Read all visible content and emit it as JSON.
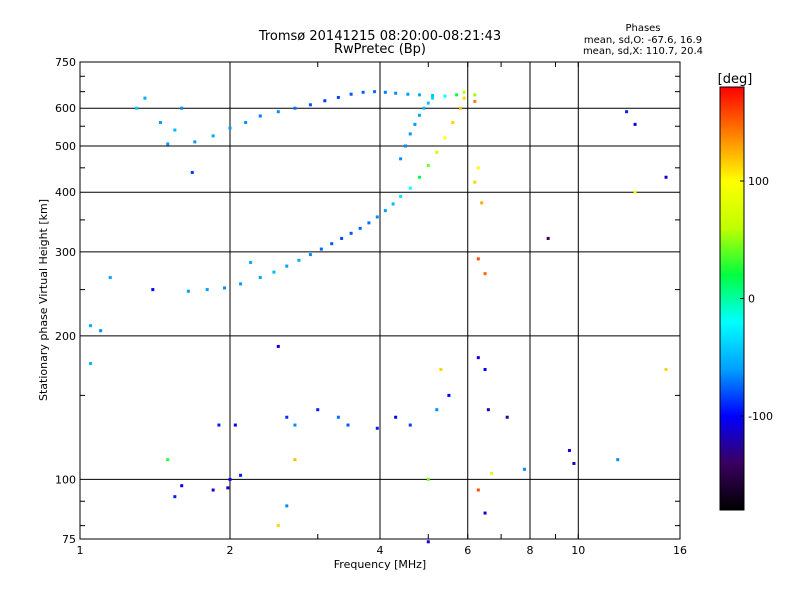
{
  "chart_data": {
    "type": "scatter",
    "title": "Tromsø 20141215 08:20:00-08:21:43",
    "subtitle": "RwPretec (Bp)",
    "xlabel": "Frequency [MHz]",
    "ylabel": "Stationary phase Virtual Height [km]",
    "x_scale": "log",
    "y_scale": "log",
    "xlim": [
      1,
      16
    ],
    "ylim": [
      75,
      750
    ],
    "x_ticks": [
      1,
      2,
      4,
      6,
      8,
      10,
      16
    ],
    "y_ticks": [
      75,
      100,
      200,
      300,
      400,
      500,
      600,
      750
    ],
    "x_tick_labels": [
      "1",
      "2",
      "4",
      "6",
      "8",
      "10",
      "16"
    ],
    "y_tick_labels": [
      "75",
      "100",
      "200",
      "300",
      "400",
      "500",
      "600",
      "750"
    ],
    "grid": true,
    "phase_box": {
      "title": "Phases",
      "line_o": "mean, sd,O: -67.6, 16.9",
      "line_x": "mean, sd,X: 110.7, 20.4"
    },
    "colorbar": {
      "label": "[deg]",
      "range": [
        -180,
        180
      ],
      "ticks": [
        100,
        0,
        -100
      ],
      "tick_labels": [
        "100",
        "0",
        "-100"
      ],
      "colors": [
        "#000000",
        "#3a0060",
        "#0000ff",
        "#00a0ff",
        "#00ffff",
        "#00ff40",
        "#c0ff00",
        "#ffff00",
        "#ff8000",
        "#ff0000"
      ]
    },
    "series": [
      {
        "trace": "lower-F-trace",
        "points": [
          [
            1.65,
            248,
            -55
          ],
          [
            1.8,
            250,
            -55
          ],
          [
            1.95,
            252,
            -60
          ],
          [
            2.1,
            257,
            -55
          ],
          [
            2.3,
            265,
            -50
          ],
          [
            2.45,
            272,
            -45
          ],
          [
            2.6,
            280,
            -55
          ],
          [
            2.75,
            288,
            -50
          ],
          [
            2.9,
            296,
            -60
          ],
          [
            3.05,
            304,
            -75
          ],
          [
            3.2,
            312,
            -80
          ],
          [
            3.35,
            320,
            -85
          ],
          [
            3.5,
            328,
            -80
          ],
          [
            3.65,
            336,
            -75
          ],
          [
            3.8,
            345,
            -70
          ],
          [
            3.95,
            355,
            -60
          ],
          [
            4.1,
            366,
            -55
          ],
          [
            4.25,
            378,
            -45
          ],
          [
            4.4,
            392,
            -30
          ],
          [
            4.6,
            408,
            -20
          ],
          [
            4.8,
            430,
            10
          ],
          [
            5.0,
            455,
            40
          ],
          [
            5.2,
            485,
            70
          ],
          [
            5.4,
            520,
            100
          ],
          [
            5.6,
            560,
            110
          ],
          [
            5.8,
            600,
            115
          ],
          [
            5.9,
            630,
            110
          ]
        ]
      },
      {
        "trace": "upper-F-trace",
        "points": [
          [
            1.5,
            505,
            -55
          ],
          [
            1.7,
            510,
            -55
          ],
          [
            1.85,
            525,
            -50
          ],
          [
            2.0,
            545,
            -55
          ],
          [
            2.15,
            560,
            -60
          ],
          [
            2.3,
            578,
            -65
          ],
          [
            2.5,
            590,
            -60
          ],
          [
            2.7,
            600,
            -70
          ],
          [
            2.9,
            610,
            -80
          ],
          [
            3.1,
            622,
            -90
          ],
          [
            3.3,
            632,
            -85
          ],
          [
            3.5,
            642,
            -80
          ],
          [
            3.7,
            648,
            -75
          ],
          [
            3.9,
            650,
            -70
          ],
          [
            4.1,
            648,
            -65
          ],
          [
            4.3,
            645,
            -60
          ],
          [
            4.55,
            642,
            -55
          ],
          [
            4.8,
            640,
            -50
          ],
          [
            5.1,
            638,
            -40
          ],
          [
            5.4,
            636,
            -20
          ],
          [
            5.7,
            640,
            10
          ],
          [
            5.9,
            648,
            60
          ]
        ]
      },
      {
        "trace": "mid-branch",
        "points": [
          [
            4.4,
            470,
            -60
          ],
          [
            4.5,
            500,
            -62
          ],
          [
            4.6,
            530,
            -58
          ],
          [
            4.7,
            555,
            -55
          ],
          [
            4.8,
            580,
            -50
          ],
          [
            4.9,
            600,
            -45
          ],
          [
            5.0,
            615,
            -40
          ],
          [
            5.1,
            630,
            -35
          ]
        ]
      },
      {
        "trace": "scattered-echoes",
        "points": [
          [
            1.35,
            630,
            -50
          ],
          [
            1.3,
            600,
            -40
          ],
          [
            1.45,
            560,
            -55
          ],
          [
            1.55,
            540,
            -45
          ],
          [
            1.68,
            440,
            -90
          ],
          [
            1.6,
            600,
            -60
          ],
          [
            1.05,
            210,
            -50
          ],
          [
            1.05,
            175,
            -45
          ],
          [
            1.1,
            205,
            -60
          ],
          [
            1.15,
            265,
            -50
          ],
          [
            1.4,
            250,
            -110
          ],
          [
            2.5,
            190,
            -120
          ],
          [
            2.2,
            285,
            -50
          ],
          [
            1.9,
            130,
            -100
          ],
          [
            2.05,
            130,
            -110
          ],
          [
            2.6,
            135,
            -95
          ],
          [
            2.7,
            130,
            -60
          ],
          [
            3.0,
            140,
            -100
          ],
          [
            3.3,
            135,
            -70
          ],
          [
            3.45,
            130,
            -80
          ],
          [
            3.95,
            128,
            -100
          ],
          [
            4.3,
            135,
            -110
          ],
          [
            4.6,
            130,
            -90
          ],
          [
            5.2,
            140,
            -60
          ],
          [
            5.5,
            150,
            -110
          ],
          [
            5.3,
            170,
            110
          ],
          [
            6.3,
            180,
            -120
          ],
          [
            6.5,
            170,
            -110
          ],
          [
            6.6,
            140,
            -130
          ],
          [
            7.2,
            135,
            -140
          ],
          [
            6.3,
            95,
            150
          ],
          [
            6.5,
            85,
            -120
          ],
          [
            7.8,
            105,
            -60
          ],
          [
            9.6,
            115,
            -120
          ],
          [
            9.8,
            108,
            -130
          ],
          [
            8.7,
            320,
            -150
          ],
          [
            6.5,
            270,
            140
          ],
          [
            6.3,
            290,
            150
          ],
          [
            6.4,
            380,
            120
          ],
          [
            6.2,
            420,
            110
          ],
          [
            6.3,
            450,
            100
          ],
          [
            6.2,
            620,
            130
          ],
          [
            1.55,
            92,
            -100
          ],
          [
            1.6,
            97,
            -110
          ],
          [
            1.85,
            95,
            -120
          ],
          [
            2.0,
            100,
            -115
          ],
          [
            2.1,
            102,
            -100
          ],
          [
            1.98,
            96,
            -125
          ],
          [
            2.5,
            80,
            110
          ],
          [
            2.6,
            88,
            -60
          ],
          [
            1.5,
            110,
            20
          ],
          [
            2.7,
            110,
            115
          ],
          [
            5.0,
            74,
            -120
          ],
          [
            5.0,
            100,
            40
          ],
          [
            6.7,
            103,
            80
          ],
          [
            12.5,
            590,
            -100
          ],
          [
            13,
            555,
            -120
          ],
          [
            13,
            400,
            100
          ],
          [
            15,
            430,
            -120
          ],
          [
            15,
            170,
            110
          ],
          [
            12,
            110,
            -60
          ],
          [
            6.2,
            640,
            50
          ]
        ]
      }
    ]
  }
}
